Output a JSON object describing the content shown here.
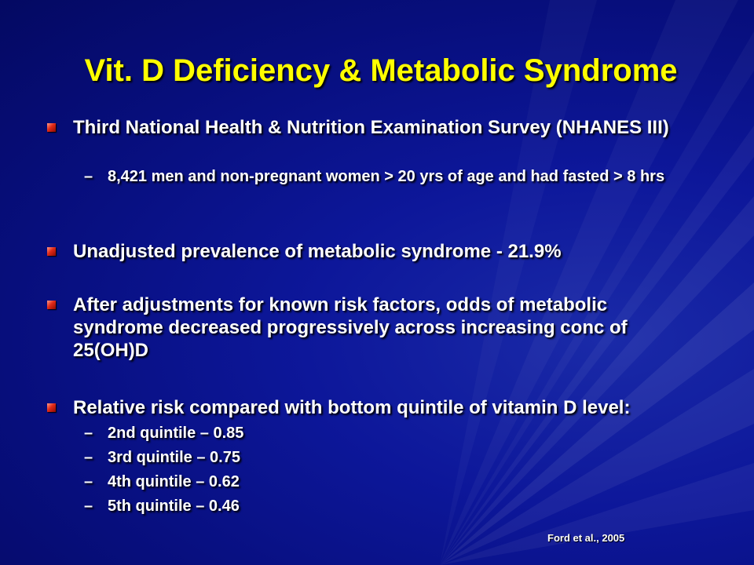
{
  "slide": {
    "title": "Vit. D Deficiency & Metabolic Syndrome",
    "bullets": [
      {
        "text": "Third National Health & Nutrition Examination Survey (NHANES III)",
        "subs": [
          "8,421 men and non-pregnant women > 20 yrs of age and had fasted > 8 hrs"
        ]
      },
      {
        "text": "Unadjusted prevalence of metabolic syndrome - 21.9%",
        "subs": []
      },
      {
        "text": "After adjustments for known risk factors, odds of metabolic syndrome decreased progressively across increasing conc of 25(OH)D",
        "subs": []
      },
      {
        "text": "Relative risk compared with bottom quintile of vitamin D level:",
        "subs": [
          "2nd quintile – 0.85",
          "3rd quintile – 0.75",
          "4th quintile – 0.62",
          "5th quintile – 0.46"
        ]
      }
    ],
    "dash": "–",
    "citation": "Ford et al., 2005"
  },
  "colors": {
    "background": "#0d179a",
    "title": "#ffff00",
    "text": "#ffffff",
    "bullet": "#e02a18"
  },
  "icons": {
    "bullet": "square-bullet-icon"
  }
}
